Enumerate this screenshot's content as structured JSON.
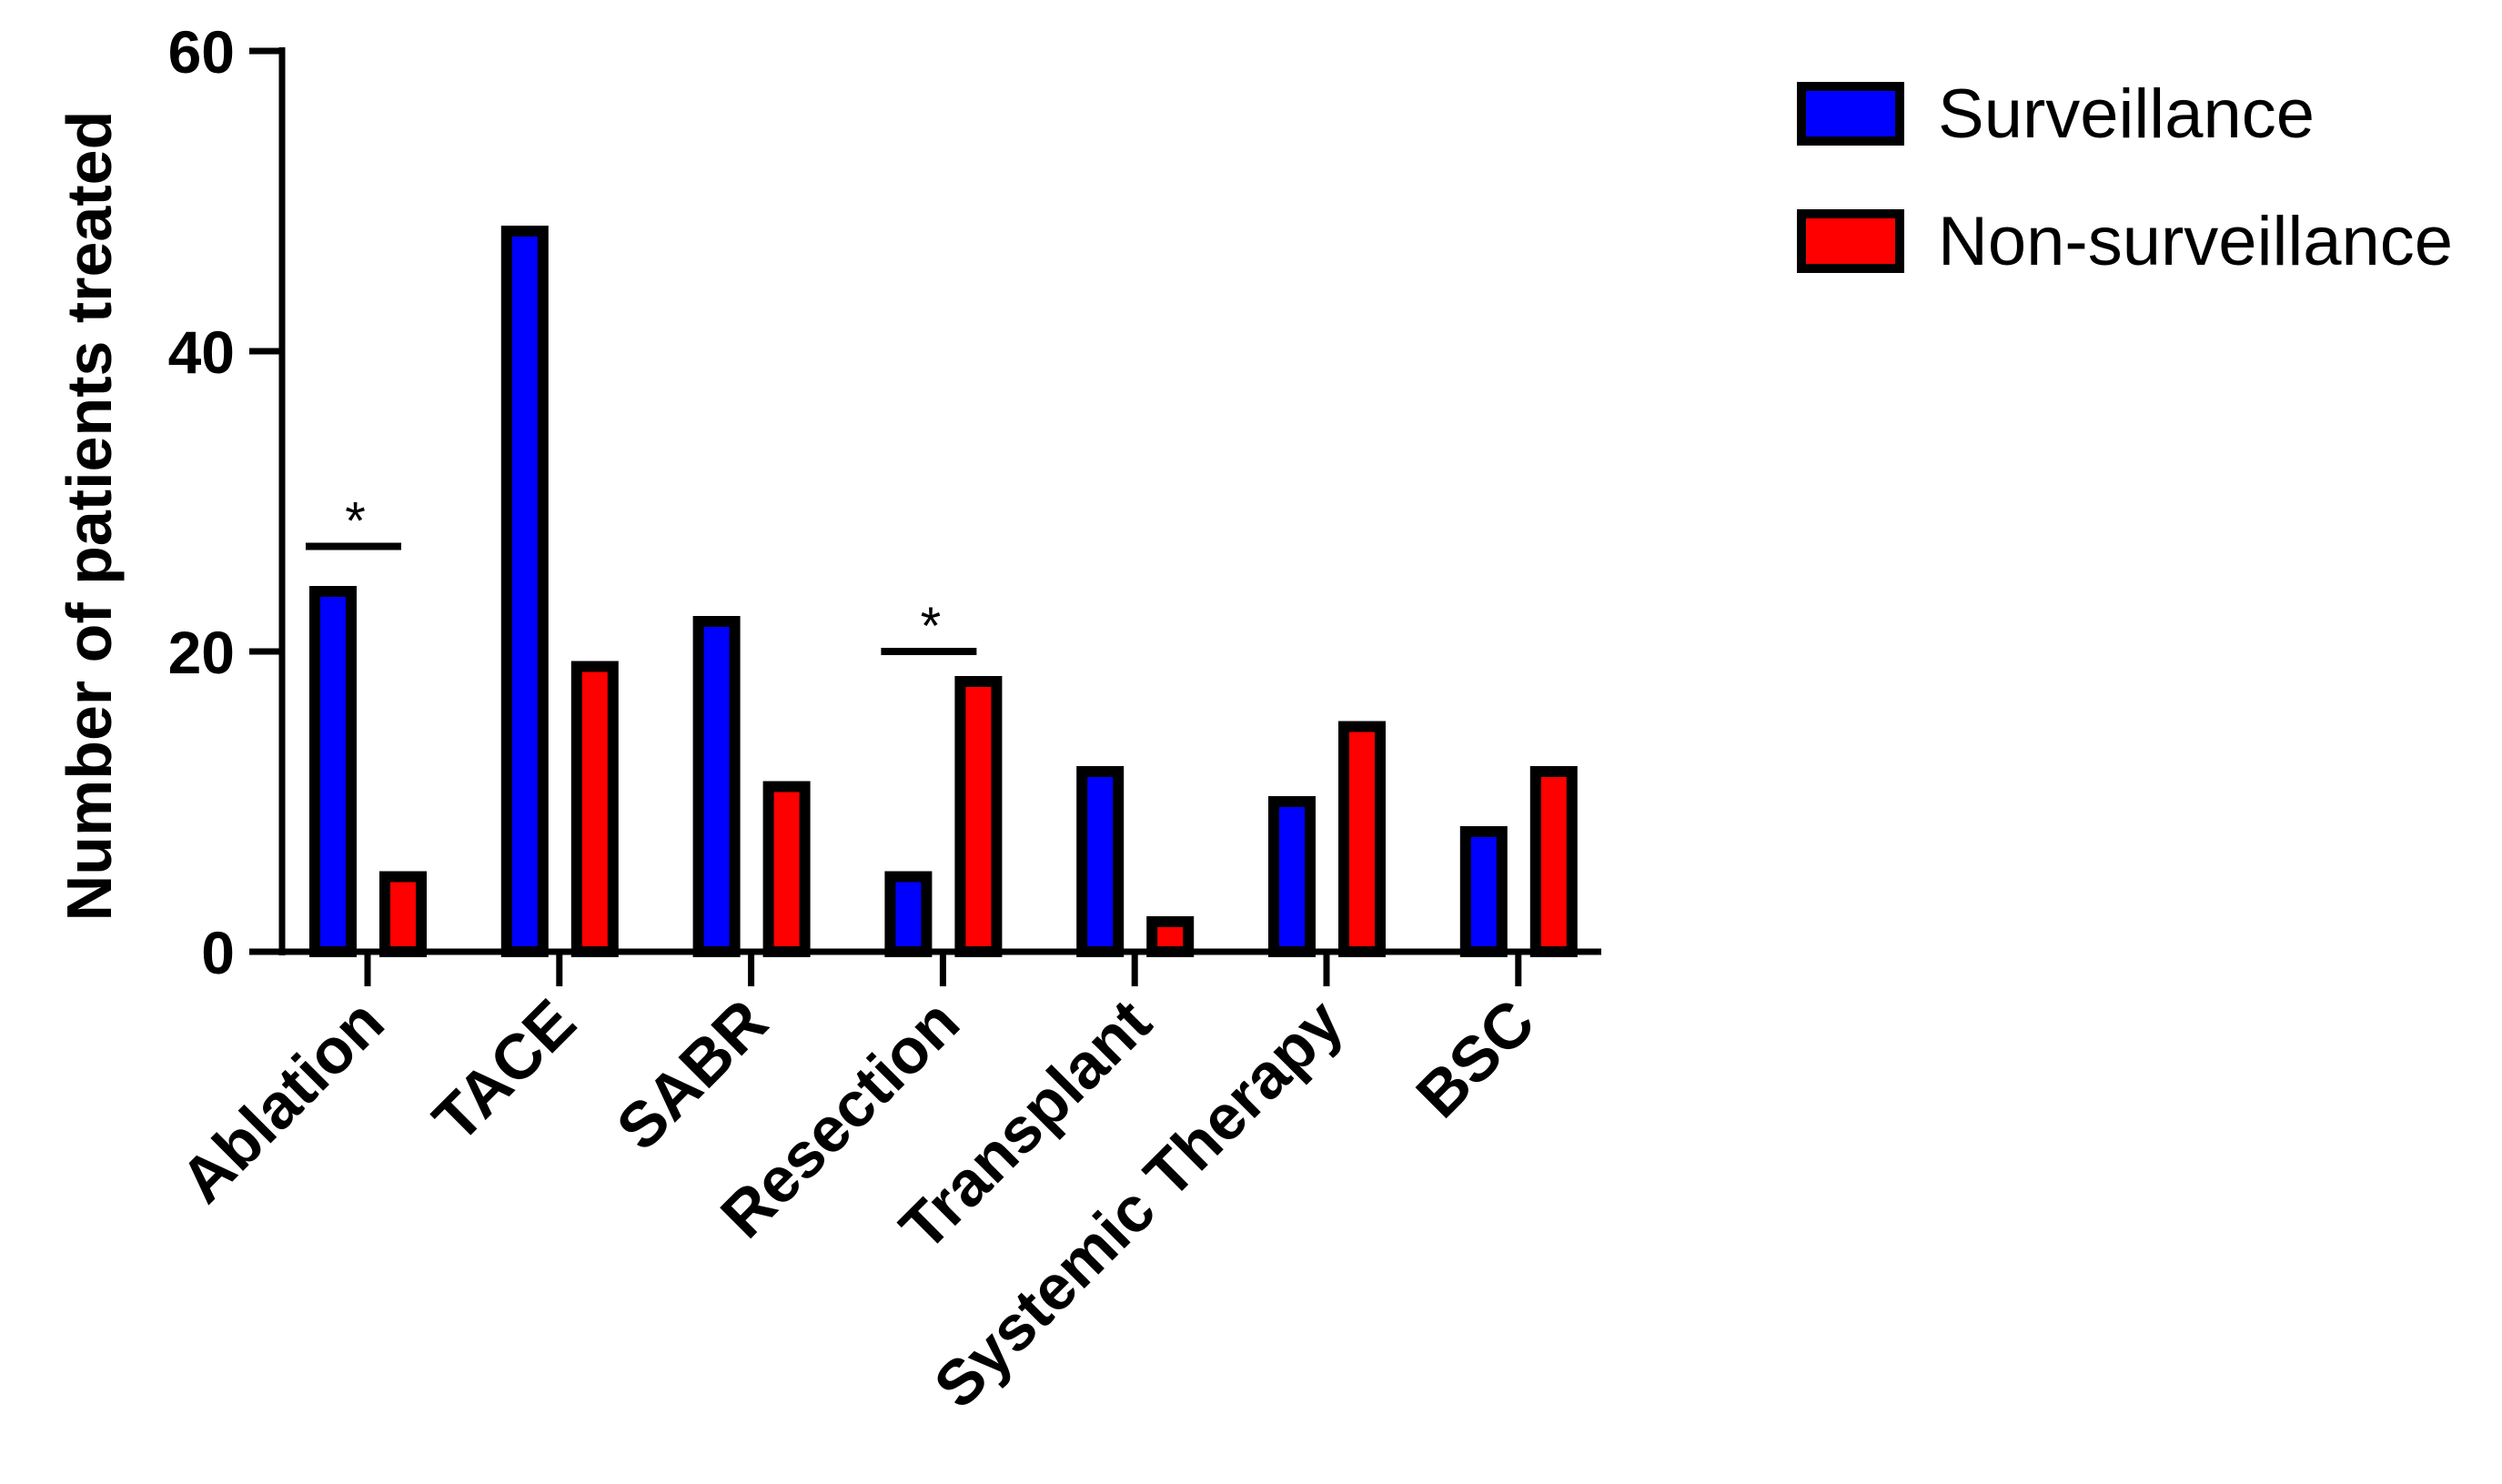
{
  "chart_data": {
    "type": "bar",
    "ylabel": "Number of patients treated",
    "ylim": [
      0,
      60
    ],
    "yticks": [
      0,
      20,
      40,
      60
    ],
    "categories": [
      "Ablation",
      "TACE",
      "SABR",
      "Resection",
      "Transplant",
      "Systemic Therapy",
      "BSC"
    ],
    "series": [
      {
        "name": "Surveillance",
        "color": "#0000ff",
        "values": [
          24,
          48,
          22,
          5,
          12,
          10,
          8
        ]
      },
      {
        "name": "Non-surveillance",
        "color": "#ff0000",
        "values": [
          5,
          19,
          11,
          18,
          2,
          15,
          12
        ]
      }
    ],
    "significance": [
      {
        "category": "Ablation",
        "label": "*",
        "level": 27
      },
      {
        "category": "Resection",
        "label": "*",
        "level": 20
      }
    ],
    "legend_position": "top-right",
    "grid": false
  }
}
